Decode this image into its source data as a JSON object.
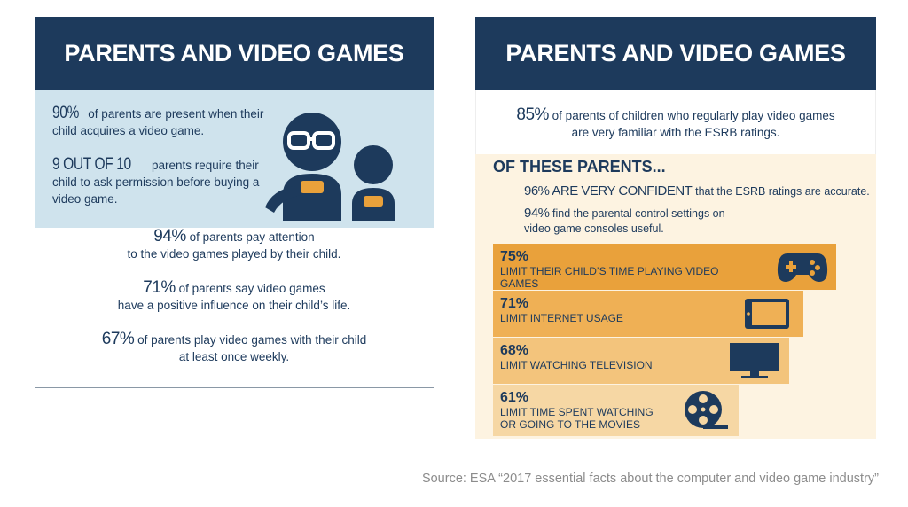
{
  "left": {
    "title": "PARENTS AND VIDEO GAMES",
    "stat1_value": "90%",
    "stat1_text": "of parents are present when their child acquires a video game.",
    "stat2_value": "9 OUT OF 10",
    "stat2_text": "parents require their child to ask permission before buying a video game.",
    "stat3_value": "94%",
    "stat3_line1": "of parents pay attention",
    "stat3_line2": "to the video games played by their child.",
    "stat4_value": "71%",
    "stat4_line1": "of parents say video games",
    "stat4_line2": "have a positive influence on their child’s life.",
    "stat5_value": "67%",
    "stat5_line1": "of parents play video games with their child",
    "stat5_line2": "at least once weekly."
  },
  "right": {
    "title": "PARENTS AND VIDEO GAMES",
    "top_value": "85%",
    "top_line1": "of parents of children who regularly play video games",
    "top_line2": "are very familiar with the ESRB ratings.",
    "of_these": "OF THESE PARENTS...",
    "conf_value": "96% ARE VERY CONFIDENT",
    "conf_text": "that the ESRB ratings are accurate.",
    "useful_value": "94%",
    "useful_line1": "find the parental control settings on",
    "useful_line2": "video game consoles useful.",
    "bars": [
      {
        "pct": "75%",
        "label": "LIMIT THEIR CHILD’S TIME PLAYING VIDEO GAMES",
        "color": "#e9a13b",
        "icon": "gamepad-icon"
      },
      {
        "pct": "71%",
        "label": "LIMIT INTERNET USAGE",
        "color": "#efb055",
        "icon": "tablet-icon"
      },
      {
        "pct": "68%",
        "label": "LIMIT WATCHING TELEVISION",
        "color": "#f3c47c",
        "icon": "television-icon"
      },
      {
        "pct": "61%",
        "label": "LIMIT TIME SPENT WATCHING",
        "label2": "OR GOING TO THE MOVIES",
        "color": "#f6d7a4",
        "icon": "film-reel-icon"
      }
    ]
  },
  "source": "Source: ESA “2017 essential facts about the computer and video game industry”",
  "colors": {
    "navy": "#1d3a5c",
    "light_blue": "#cfe3ed",
    "cream": "#fdf3e1",
    "orange": "#e9a13b"
  }
}
